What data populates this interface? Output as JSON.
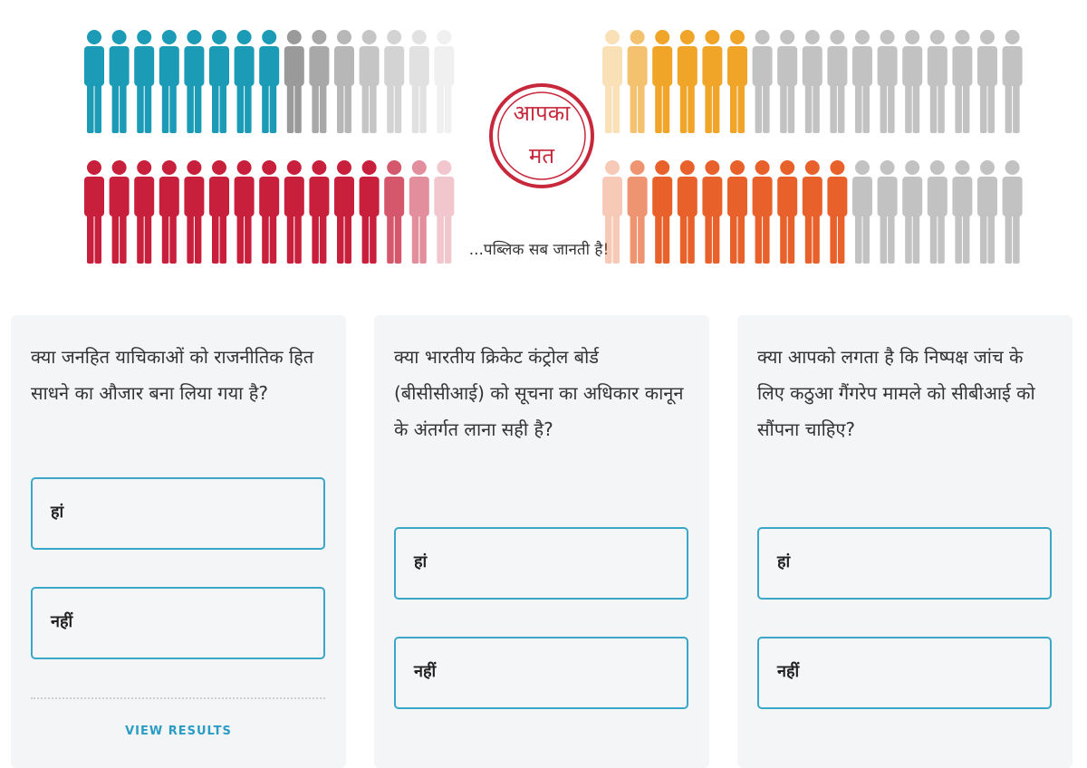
{
  "banner": {
    "stamp": [
      "आपका",
      "मत"
    ],
    "tagline": "...पब्लिक सब जानती है!"
  },
  "polls": [
    {
      "question": "क्या जनहित याचिकाओं को राजनीतिक हित साधने का औजार बना लिया गया है?",
      "options": [
        "हां",
        "नहीं"
      ],
      "view_results": "VIEW RESULTS"
    },
    {
      "question": "क्या भारतीय क्रिकेट कंट्रोल बोर्ड (बीसीसीआई) को सूचना का अधिकार कानून के अंतर्गत लाना सही है?",
      "options": [
        "हां",
        "नहीं"
      ]
    },
    {
      "question": "क्या आपको लगता है कि निष्पक्ष जांच के लिए कठुआ गैंगरेप मामले को सीबीआई को सौंपना चाहिए?",
      "options": [
        "हां",
        "नहीं"
      ]
    }
  ]
}
